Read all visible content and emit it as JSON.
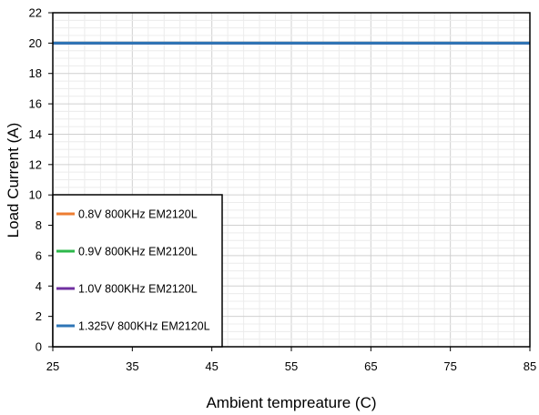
{
  "chart_data": {
    "type": "line",
    "xlabel": "Ambient tempreature (C)",
    "ylabel": "Load Current (A)",
    "xlim": [
      25,
      85
    ],
    "ylim": [
      0,
      22
    ],
    "xticks": [
      25,
      35,
      45,
      55,
      65,
      75,
      85
    ],
    "yticks": [
      0,
      2,
      4,
      6,
      8,
      10,
      12,
      14,
      16,
      18,
      20,
      22
    ],
    "grid": true,
    "legend_position": "bottom-left",
    "series": [
      {
        "name": "0.8V 800KHz EM2120L",
        "color": "#ED7D31",
        "x": [
          25,
          85
        ],
        "y": [
          20,
          20
        ]
      },
      {
        "name": "0.9V 800KHz EM2120L",
        "color": "#2DB84B",
        "x": [
          25,
          85
        ],
        "y": [
          20,
          20
        ]
      },
      {
        "name": "1.0V 800KHz EM2120L",
        "color": "#7030A0",
        "x": [
          25,
          85
        ],
        "y": [
          20,
          20
        ]
      },
      {
        "name": "1.325V 800KHz EM2120L",
        "color": "#2E75B6",
        "x": [
          25,
          85
        ],
        "y": [
          20,
          20
        ]
      }
    ]
  }
}
